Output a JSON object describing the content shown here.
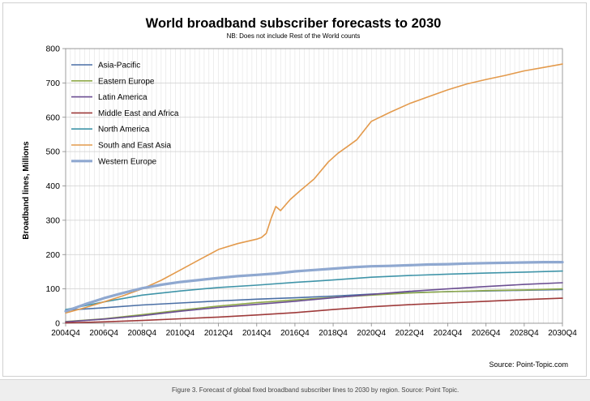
{
  "caption": "Figure 3. Forecast of global fixed broadband subscriber lines to 2030 by region. Source: Point Topic.",
  "chart_data": {
    "type": "line",
    "title": "World broadband subscriber forecasts to 2030",
    "subtitle": "NB: Does not include Rest of the World counts",
    "ylabel": "Broadband lines, Millions",
    "xlabel": "",
    "source": "Source: Point-Topic.com",
    "ylim": [
      0,
      800
    ],
    "yticks": [
      0,
      100,
      200,
      300,
      400,
      500,
      600,
      700,
      800
    ],
    "xlim": [
      2004.75,
      2030.75
    ],
    "xticks": [
      {
        "x": 2004.75,
        "label": "2004Q4"
      },
      {
        "x": 2006.75,
        "label": "2006Q4"
      },
      {
        "x": 2008.75,
        "label": "2008Q4"
      },
      {
        "x": 2010.75,
        "label": "2010Q4"
      },
      {
        "x": 2012.75,
        "label": "2012Q4"
      },
      {
        "x": 2014.75,
        "label": "2014Q4"
      },
      {
        "x": 2016.75,
        "label": "2016Q4"
      },
      {
        "x": 2018.75,
        "label": "2018Q4"
      },
      {
        "x": 2020.75,
        "label": "2020Q4"
      },
      {
        "x": 2022.75,
        "label": "2022Q4"
      },
      {
        "x": 2024.75,
        "label": "2024Q4"
      },
      {
        "x": 2026.75,
        "label": "2026Q4"
      },
      {
        "x": 2028.75,
        "label": "2028Q4"
      },
      {
        "x": 2030.75,
        "label": "2030Q4"
      }
    ],
    "grid": true,
    "legend": "top-left",
    "series": [
      {
        "name": "Asia-Pacific",
        "color": "#4a6fa5",
        "width": 1.6,
        "x": [
          2004.75,
          2006.75,
          2008.75,
          2010.75,
          2012.75,
          2014.75,
          2016.75,
          2018.75,
          2020.75,
          2022.75,
          2024.75,
          2026.75,
          2028.75,
          2030.75
        ],
        "y": [
          38,
          45,
          53,
          59,
          65,
          70,
          74,
          79,
          85,
          89,
          92,
          94,
          96,
          98
        ]
      },
      {
        "name": "Eastern Europe",
        "color": "#8faa4a",
        "width": 1.6,
        "x": [
          2004.75,
          2006.75,
          2008.75,
          2010.75,
          2012.75,
          2014.75,
          2016.75,
          2018.75,
          2020.75,
          2022.75,
          2024.75,
          2026.75,
          2028.75,
          2030.75
        ],
        "y": [
          5,
          13,
          25,
          38,
          50,
          60,
          68,
          75,
          82,
          88,
          92,
          95,
          97,
          100
        ]
      },
      {
        "name": "Latin America",
        "color": "#6b4e92",
        "width": 1.6,
        "x": [
          2004.75,
          2006.75,
          2008.75,
          2010.75,
          2012.75,
          2014.75,
          2016.75,
          2018.75,
          2020.75,
          2022.75,
          2024.75,
          2026.75,
          2028.75,
          2030.75
        ],
        "y": [
          4,
          12,
          22,
          35,
          46,
          55,
          64,
          74,
          84,
          93,
          100,
          107,
          113,
          118
        ]
      },
      {
        "name": "Middle East and Africa",
        "color": "#9e3a3a",
        "width": 1.6,
        "x": [
          2004.75,
          2006.75,
          2008.75,
          2010.75,
          2012.75,
          2014.75,
          2016.75,
          2018.75,
          2020.75,
          2022.75,
          2024.75,
          2026.75,
          2028.75,
          2030.75
        ],
        "y": [
          1,
          4,
          8,
          13,
          18,
          24,
          31,
          40,
          48,
          54,
          59,
          64,
          69,
          73
        ]
      },
      {
        "name": "North America",
        "color": "#3f94a8",
        "width": 1.6,
        "x": [
          2004.75,
          2006.75,
          2008.75,
          2010.75,
          2012.75,
          2014.75,
          2016.75,
          2018.75,
          2020.75,
          2022.75,
          2024.75,
          2026.75,
          2028.75,
          2030.75
        ],
        "y": [
          40,
          62,
          82,
          94,
          104,
          111,
          119,
          126,
          134,
          139,
          143,
          146,
          149,
          152
        ]
      },
      {
        "name": "South and East Asia",
        "color": "#e39a4c",
        "width": 1.6,
        "x": [
          2004.75,
          2005.75,
          2006.75,
          2007.75,
          2008.75,
          2009.75,
          2010.75,
          2011.75,
          2012.75,
          2013.75,
          2014.75,
          2015.0,
          2015.25,
          2015.5,
          2015.75,
          2016.0,
          2016.5,
          2017.0,
          2017.75,
          2018.5,
          2019.0,
          2019.5,
          2020.0,
          2020.75,
          2021.75,
          2022.75,
          2023.75,
          2024.75,
          2025.75,
          2026.75,
          2027.75,
          2028.75,
          2029.75,
          2030.75
        ],
        "y": [
          30,
          45,
          62,
          80,
          100,
          125,
          155,
          185,
          215,
          232,
          245,
          250,
          262,
          305,
          340,
          328,
          360,
          385,
          420,
          470,
          495,
          515,
          535,
          588,
          615,
          640,
          660,
          680,
          697,
          710,
          722,
          735,
          745,
          755
        ]
      },
      {
        "name": "Western Europe",
        "color": "#8fa8d0",
        "width": 3.2,
        "x": [
          2004.75,
          2005.75,
          2006.75,
          2007.75,
          2008.75,
          2009.75,
          2010.75,
          2011.75,
          2012.75,
          2013.75,
          2014.75,
          2015.75,
          2016.75,
          2017.75,
          2018.75,
          2019.75,
          2020.75,
          2021.75,
          2022.75,
          2023.75,
          2024.75,
          2025.75,
          2026.75,
          2027.75,
          2028.75,
          2029.75,
          2030.75
        ],
        "y": [
          35,
          55,
          73,
          88,
          102,
          112,
          120,
          126,
          132,
          137,
          141,
          145,
          151,
          155,
          159,
          163,
          166,
          167,
          169,
          171,
          172,
          174,
          175,
          176,
          177,
          178,
          178
        ]
      }
    ]
  }
}
